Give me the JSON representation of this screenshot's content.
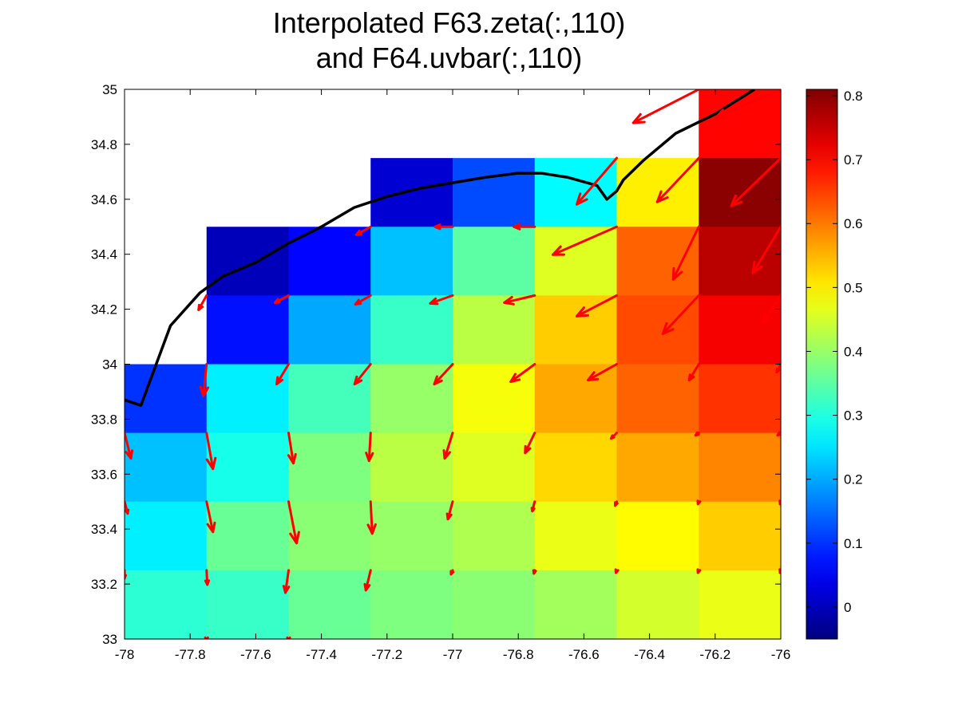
{
  "chart_data": {
    "type": "heatmap",
    "title_lines": [
      "Interpolated F63.zeta(:,110)",
      "and F64.uvbar(:,110)"
    ],
    "xlabel": "",
    "ylabel": "",
    "xlim": [
      -78,
      -76
    ],
    "ylim": [
      33,
      35
    ],
    "x_ticks": [
      -78,
      -77.8,
      -77.6,
      -77.4,
      -77.2,
      -77,
      -76.8,
      -76.6,
      -76.4,
      -76.2,
      -76
    ],
    "x_tick_labels": [
      "-78",
      "-77.8",
      "-77.6",
      "-77.4",
      "-77.2",
      "-77",
      "-76.8",
      "-76.6",
      "-76.4",
      "-76.2",
      "-76"
    ],
    "y_ticks": [
      33,
      33.2,
      33.4,
      33.6,
      33.8,
      34,
      34.2,
      34.4,
      34.6,
      34.8,
      35
    ],
    "y_tick_labels": [
      "33",
      "33.2",
      "33.4",
      "33.6",
      "33.8",
      "34",
      "34.2",
      "34.4",
      "34.6",
      "34.8",
      "35"
    ],
    "cell_x_edges": [
      -78,
      -77.75,
      -77.5,
      -77.25,
      -77,
      -76.75,
      -76.5,
      -76.25,
      -76
    ],
    "cell_y_edges": [
      33,
      33.25,
      33.5,
      33.75,
      34,
      34.25,
      34.5,
      34.75,
      35
    ],
    "zeta_rows_top_to_bottom": [
      [
        null,
        null,
        null,
        null,
        null,
        null,
        null,
        0.7
      ],
      [
        null,
        null,
        null,
        0.02,
        0.12,
        0.27,
        0.5,
        0.8
      ],
      [
        null,
        0.0,
        0.06,
        0.22,
        0.35,
        0.46,
        0.62,
        0.76
      ],
      [
        null,
        0.07,
        0.2,
        0.32,
        0.43,
        0.53,
        0.64,
        0.71
      ],
      [
        0.1,
        0.26,
        0.33,
        0.4,
        0.48,
        0.56,
        0.62,
        0.66
      ],
      [
        0.22,
        0.29,
        0.38,
        0.43,
        0.46,
        0.52,
        0.56,
        0.59
      ],
      [
        0.26,
        0.36,
        0.39,
        0.4,
        0.42,
        0.47,
        0.49,
        0.53
      ],
      [
        0.31,
        0.32,
        0.36,
        0.38,
        0.39,
        0.41,
        0.45,
        0.47
      ]
    ],
    "colorbar": {
      "range": [
        -0.05,
        0.81
      ],
      "ticks": [
        0,
        0.1,
        0.2,
        0.3,
        0.4,
        0.5,
        0.6,
        0.7,
        0.8
      ],
      "tick_labels": [
        "0",
        "0.1",
        "0.2",
        "0.3",
        "0.4",
        "0.5",
        "0.6",
        "0.7",
        "0.8"
      ],
      "colormap": "jet"
    },
    "vector_color": "#ff0000",
    "vectors": [
      {
        "lon": -76.25,
        "lat": 35.0,
        "u": -0.82,
        "v": -0.42
      },
      {
        "lon": -76.0,
        "lat": 35.0,
        "u": -0.82,
        "v": -0.36
      },
      {
        "lon": -76.5,
        "lat": 34.75,
        "u": -0.5,
        "v": -0.58
      },
      {
        "lon": -76.25,
        "lat": 34.75,
        "u": -0.52,
        "v": -0.55
      },
      {
        "lon": -76.0,
        "lat": 34.75,
        "u": -0.62,
        "v": -0.6
      },
      {
        "lon": -77.25,
        "lat": 34.5,
        "u": -0.18,
        "v": -0.1
      },
      {
        "lon": -77.0,
        "lat": 34.5,
        "u": -0.22,
        "v": 0.0
      },
      {
        "lon": -76.75,
        "lat": 34.5,
        "u": -0.26,
        "v": 0.0
      },
      {
        "lon": -76.5,
        "lat": 34.5,
        "u": -0.8,
        "v": -0.35
      },
      {
        "lon": -76.25,
        "lat": 34.5,
        "u": -0.32,
        "v": -0.66
      },
      {
        "lon": -76.0,
        "lat": 34.5,
        "u": -0.35,
        "v": -0.58
      },
      {
        "lon": -77.75,
        "lat": 34.25,
        "u": -0.1,
        "v": -0.18
      },
      {
        "lon": -77.5,
        "lat": 34.25,
        "u": -0.17,
        "v": -0.09
      },
      {
        "lon": -77.25,
        "lat": 34.25,
        "u": -0.19,
        "v": -0.11
      },
      {
        "lon": -77.0,
        "lat": 34.25,
        "u": -0.28,
        "v": -0.1
      },
      {
        "lon": -76.75,
        "lat": 34.25,
        "u": -0.38,
        "v": -0.09
      },
      {
        "lon": -76.5,
        "lat": 34.25,
        "u": -0.5,
        "v": -0.26
      },
      {
        "lon": -76.25,
        "lat": 34.25,
        "u": -0.45,
        "v": -0.48
      },
      {
        "lon": -76.0,
        "lat": 34.25,
        "u": -0.22,
        "v": -0.35
      },
      {
        "lon": -77.75,
        "lat": 34.0,
        "u": -0.04,
        "v": -0.4
      },
      {
        "lon": -77.5,
        "lat": 34.0,
        "u": -0.15,
        "v": -0.25
      },
      {
        "lon": -77.25,
        "lat": 34.0,
        "u": -0.2,
        "v": -0.25
      },
      {
        "lon": -77.0,
        "lat": 34.0,
        "u": -0.23,
        "v": -0.25
      },
      {
        "lon": -76.75,
        "lat": 34.0,
        "u": -0.3,
        "v": -0.22
      },
      {
        "lon": -76.5,
        "lat": 34.0,
        "u": -0.36,
        "v": -0.2
      },
      {
        "lon": -76.25,
        "lat": 34.0,
        "u": -0.12,
        "v": -0.2
      },
      {
        "lon": -76.0,
        "lat": 34.0,
        "u": -0.05,
        "v": -0.1
      },
      {
        "lon": -78.0,
        "lat": 33.75,
        "u": 0.08,
        "v": -0.32
      },
      {
        "lon": -77.75,
        "lat": 33.75,
        "u": 0.08,
        "v": -0.45
      },
      {
        "lon": -77.5,
        "lat": 33.75,
        "u": 0.06,
        "v": -0.38
      },
      {
        "lon": -77.25,
        "lat": 33.75,
        "u": -0.02,
        "v": -0.35
      },
      {
        "lon": -77.0,
        "lat": 33.75,
        "u": -0.1,
        "v": -0.32
      },
      {
        "lon": -76.75,
        "lat": 33.75,
        "u": -0.12,
        "v": -0.25
      },
      {
        "lon": -76.5,
        "lat": 33.75,
        "u": -0.07,
        "v": -0.07
      },
      {
        "lon": -76.25,
        "lat": 33.75,
        "u": -0.04,
        "v": -0.03
      },
      {
        "lon": -76.0,
        "lat": 33.75,
        "u": -0.04,
        "v": -0.03
      },
      {
        "lon": -78.0,
        "lat": 33.5,
        "u": 0.04,
        "v": -0.15
      },
      {
        "lon": -77.75,
        "lat": 33.5,
        "u": 0.08,
        "v": -0.38
      },
      {
        "lon": -77.5,
        "lat": 33.5,
        "u": 0.1,
        "v": -0.52
      },
      {
        "lon": -77.25,
        "lat": 33.5,
        "u": 0.02,
        "v": -0.4
      },
      {
        "lon": -77.0,
        "lat": 33.5,
        "u": -0.06,
        "v": -0.22
      },
      {
        "lon": -76.75,
        "lat": 33.5,
        "u": -0.03,
        "v": -0.12
      },
      {
        "lon": -76.5,
        "lat": 33.5,
        "u": -0.02,
        "v": -0.05
      },
      {
        "lon": -76.25,
        "lat": 33.5,
        "u": -0.01,
        "v": -0.03
      },
      {
        "lon": -76.0,
        "lat": 33.5,
        "u": -0.01,
        "v": -0.03
      },
      {
        "lon": -78.0,
        "lat": 33.25,
        "u": 0.0,
        "v": -0.1
      },
      {
        "lon": -77.75,
        "lat": 33.25,
        "u": 0.01,
        "v": -0.18
      },
      {
        "lon": -77.5,
        "lat": 33.25,
        "u": -0.04,
        "v": -0.28
      },
      {
        "lon": -77.25,
        "lat": 33.25,
        "u": -0.06,
        "v": -0.25
      },
      {
        "lon": -77.0,
        "lat": 33.25,
        "u": -0.02,
        "v": -0.05
      },
      {
        "lon": -76.75,
        "lat": 33.25,
        "u": -0.01,
        "v": -0.04
      },
      {
        "lon": -76.5,
        "lat": 33.25,
        "u": -0.01,
        "v": -0.03
      },
      {
        "lon": -76.25,
        "lat": 33.25,
        "u": -0.01,
        "v": -0.03
      },
      {
        "lon": -76.0,
        "lat": 33.25,
        "u": -0.01,
        "v": -0.03
      },
      {
        "lon": -77.75,
        "lat": 33.0,
        "u": 0.0,
        "v": -0.02
      },
      {
        "lon": -77.5,
        "lat": 33.0,
        "u": 0.0,
        "v": -0.02
      }
    ],
    "coastline_color": "#000000",
    "coastline": [
      [
        -78.0,
        33.87
      ],
      [
        -77.95,
        33.85
      ],
      [
        -77.86,
        34.14
      ],
      [
        -77.77,
        34.26
      ],
      [
        -77.7,
        34.32
      ],
      [
        -77.6,
        34.37
      ],
      [
        -77.5,
        34.44
      ],
      [
        -77.4,
        34.5
      ],
      [
        -77.3,
        34.57
      ],
      [
        -77.2,
        34.61
      ],
      [
        -77.1,
        34.64
      ],
      [
        -77.0,
        34.66
      ],
      [
        -76.9,
        34.68
      ],
      [
        -76.8,
        34.695
      ],
      [
        -76.73,
        34.695
      ],
      [
        -76.65,
        34.68
      ],
      [
        -76.56,
        34.65
      ],
      [
        -76.53,
        34.6
      ],
      [
        -76.5,
        34.63
      ],
      [
        -76.48,
        34.67
      ],
      [
        -76.42,
        34.74
      ],
      [
        -76.32,
        34.84
      ],
      [
        -76.2,
        34.91
      ],
      [
        -76.12,
        34.97
      ],
      [
        -76.08,
        35.0
      ]
    ]
  }
}
